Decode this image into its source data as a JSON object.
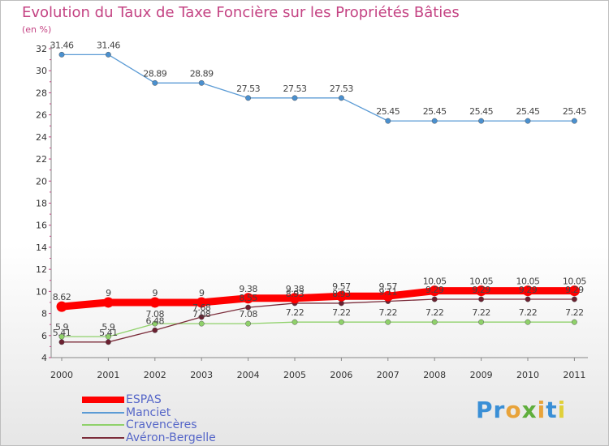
{
  "header": {
    "title": "Evolution du Taux de Taxe Foncière sur les Propriétés Bâties",
    "unit": "(en %)"
  },
  "logo": {
    "text": "Proxiti"
  },
  "chart_data": {
    "type": "line",
    "title": "Evolution du Taux de Taxe Foncière sur les Propriétés Bâties",
    "ylabel": "(en %)",
    "xlabel": "",
    "ylim": [
      4,
      32
    ],
    "ytick_step": 2,
    "grid": false,
    "legend_position": "bottom-left",
    "categories": [
      "2000",
      "2001",
      "2002",
      "2003",
      "2004",
      "2005",
      "2006",
      "2007",
      "2008",
      "2009",
      "2010",
      "2011"
    ],
    "series": [
      {
        "name": "ESPAS",
        "color": "#ff0000",
        "values": [
          8.62,
          9,
          9,
          9,
          9.38,
          9.38,
          9.57,
          9.57,
          10.05,
          10.05,
          10.05,
          10.05
        ],
        "labels": [
          "8.62",
          "9",
          "9",
          "9",
          "9.38",
          "9.38",
          "9.57",
          "9.57",
          "10.05",
          "10.05",
          "10.05",
          "10.05"
        ]
      },
      {
        "name": "Manciet",
        "color": "#5b9bd5",
        "values": [
          31.46,
          31.46,
          28.89,
          28.89,
          27.53,
          27.53,
          27.53,
          25.45,
          25.45,
          25.45,
          25.45,
          25.45
        ],
        "labels": [
          "31.46",
          "31.46",
          "28.89",
          "28.89",
          "27.53",
          "27.53",
          "27.53",
          "25.45",
          "25.45",
          "25.45",
          "25.45",
          "25.45"
        ]
      },
      {
        "name": "Cravencères",
        "color": "#8fd16a",
        "values": [
          5.9,
          5.9,
          7.08,
          7.08,
          7.08,
          7.22,
          7.22,
          7.22,
          7.22,
          7.22,
          7.22,
          7.22
        ],
        "labels": [
          "5.9",
          "5.9",
          "7.08",
          "7.08",
          "7.08",
          "7.22",
          "7.22",
          "7.22",
          "7.22",
          "7.22",
          "7.22",
          "7.22"
        ]
      },
      {
        "name": "Avéron-Bergelle",
        "color": "#7b2c3a",
        "values": [
          5.41,
          5.41,
          6.48,
          7.68,
          8.55,
          8.93,
          8.93,
          9.11,
          9.29,
          9.29,
          9.29,
          9.29
        ],
        "labels": [
          "5.41",
          "5.41",
          "6.48",
          "7.68",
          "8.55",
          "8.93",
          "8.93",
          "9.11",
          "9.29",
          "9.29",
          "9.29",
          "9.29"
        ]
      }
    ]
  }
}
